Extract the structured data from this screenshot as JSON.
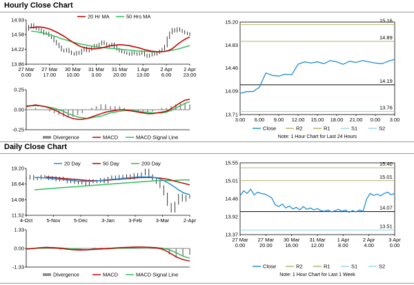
{
  "sections": [
    {
      "title": "Hourly Close Chart"
    },
    {
      "title": "Daily Close Chart"
    }
  ],
  "colors": {
    "close": "#1f8dd6",
    "red": "#c00000",
    "green": "#2dbf5a",
    "olive": "#b5b26a",
    "gray": "#8c8c8c",
    "lightblue": "#9ad9e6",
    "black": "#000000"
  },
  "chart_data": [
    {
      "id": "hourly_price",
      "type": "line",
      "legend": [
        "20 Hr MA",
        "50 Hrs MA"
      ],
      "yticks": [
        "14.93",
        "14.58",
        "14.22",
        "13.86"
      ],
      "ylim": [
        13.86,
        14.93
      ],
      "xticks": [
        [
          "27 Mar",
          "0.00"
        ],
        [
          "27 Mar",
          "17.00"
        ],
        [
          "30 Mar",
          "10.00"
        ],
        [
          "31 Mar",
          "3.00"
        ],
        [
          "31 Mar",
          "20.00"
        ],
        [
          "1 Apr",
          "13.00"
        ],
        [
          "2 Apr",
          "6.00"
        ],
        [
          "2 Apr",
          "23.00"
        ]
      ],
      "close": [
        14.7,
        14.78,
        14.82,
        14.75,
        14.72,
        14.7,
        14.66,
        14.6,
        14.62,
        14.55,
        14.5,
        14.42,
        14.35,
        14.28,
        14.2,
        14.18,
        14.22,
        14.16,
        14.12,
        14.1,
        14.15,
        14.12,
        14.2,
        14.25,
        14.18,
        14.22,
        14.28,
        14.32,
        14.3,
        14.35,
        14.4,
        14.36,
        14.3,
        14.32,
        14.35,
        14.28,
        14.22,
        14.18,
        14.16,
        14.14,
        14.12,
        14.1,
        14.14,
        14.12,
        14.1,
        14.12,
        14.16,
        14.08,
        14.05,
        14.08,
        14.12,
        14.1,
        14.14,
        14.18,
        14.22,
        14.3,
        14.5,
        14.62,
        14.7,
        14.66,
        14.72,
        14.68,
        14.65,
        14.62,
        14.6,
        14.58
      ],
      "ma20": [
        14.74,
        14.75,
        14.76,
        14.76,
        14.75,
        14.73,
        14.7,
        14.66,
        14.62,
        14.57,
        14.52,
        14.46,
        14.4,
        14.35,
        14.3,
        14.27,
        14.25,
        14.24,
        14.23,
        14.24,
        14.25,
        14.27,
        14.29,
        14.31,
        14.32,
        14.33,
        14.33,
        14.32,
        14.31,
        14.29,
        14.27,
        14.25,
        14.22,
        14.2,
        14.18,
        14.17,
        14.16,
        14.16,
        14.17,
        14.19,
        14.23,
        14.3,
        14.37,
        14.43,
        14.48,
        14.52
      ],
      "ma50": [
        14.66,
        14.65,
        14.63,
        14.61,
        14.58,
        14.55,
        14.52,
        14.48,
        14.45,
        14.42,
        14.39,
        14.36,
        14.34,
        14.32,
        14.3,
        14.28,
        14.27,
        14.26,
        14.25,
        14.24,
        14.23,
        14.22,
        14.21,
        14.2,
        14.19,
        14.18,
        14.17,
        14.17,
        14.16,
        14.16,
        14.16,
        14.17,
        14.18,
        14.2,
        14.22,
        14.25,
        14.28,
        14.31
      ]
    },
    {
      "id": "hourly_macd",
      "type": "line",
      "legend": [
        "Divergence",
        "MACD",
        "MACD Signal Line"
      ],
      "yticks": [
        "0.25",
        "0.00",
        "-0.25"
      ],
      "ylim": [
        -0.25,
        0.25
      ],
      "macd": [
        0.04,
        0.05,
        0.06,
        0.05,
        0.04,
        0.02,
        0.0,
        -0.03,
        -0.06,
        -0.09,
        -0.11,
        -0.12,
        -0.12,
        -0.11,
        -0.09,
        -0.07,
        -0.05,
        -0.03,
        -0.02,
        -0.01,
        0.0,
        0.0,
        -0.01,
        -0.02,
        -0.03,
        -0.04,
        -0.05,
        -0.05,
        -0.04,
        -0.03,
        -0.02,
        0.01,
        0.05,
        0.09,
        0.12,
        0.13
      ],
      "signal": [
        0.05,
        0.05,
        0.05,
        0.05,
        0.04,
        0.03,
        0.02,
        0.0,
        -0.02,
        -0.05,
        -0.07,
        -0.09,
        -0.1,
        -0.11,
        -0.1,
        -0.09,
        -0.08,
        -0.06,
        -0.04,
        -0.03,
        -0.02,
        -0.01,
        -0.01,
        -0.01,
        -0.02,
        -0.03,
        -0.03,
        -0.04,
        -0.04,
        -0.04,
        -0.03,
        -0.01,
        0.02,
        0.05,
        0.08,
        0.1
      ]
    },
    {
      "id": "hourly_24h",
      "type": "line",
      "yticks": [
        "15.20",
        "14.83",
        "14.46",
        "14.09",
        "13.71"
      ],
      "ylim": [
        13.71,
        15.2
      ],
      "xticks": [
        "3.00",
        "6.00",
        "9.00",
        "12.00",
        "15.00",
        "18.00",
        "21.00",
        "0.00",
        "3.00"
      ],
      "levels": {
        "R2": 15.16,
        "R1": 14.89,
        "S1": 14.19,
        "S2": 13.76
      },
      "level_labels": {
        "R2": "15.16",
        "R1": "14.89",
        "S1": "14.19",
        "S2": "13.76"
      },
      "close": [
        14.05,
        14.08,
        14.08,
        14.15,
        14.38,
        14.34,
        14.33,
        14.36,
        14.35,
        14.52,
        14.56,
        14.54,
        14.56,
        14.53,
        14.58,
        14.56,
        14.52,
        14.57,
        14.55,
        14.58,
        14.56,
        14.54,
        14.53,
        14.57,
        14.6
      ],
      "legend": [
        "Close",
        "R2",
        "R1",
        "S1",
        "S2"
      ],
      "note": "Note: 1 Hour Chart for Last 24 Hours"
    },
    {
      "id": "daily_price",
      "type": "line",
      "legend": [
        "20 Day",
        "50 Day",
        "200 Day"
      ],
      "yticks": [
        "19.20",
        "16.64",
        "14.08",
        "11.52"
      ],
      "ylim": [
        11.52,
        19.2
      ],
      "xticks": [
        "4-Oct",
        "5-Nov",
        "5-Dec",
        "3-Jan",
        "3-Feb",
        "3-Mar",
        "2-Apr"
      ],
      "close": [
        17.6,
        17.9,
        17.5,
        17.6,
        17.9,
        17.8,
        17.5,
        17.7,
        17.3,
        17.6,
        17.4,
        17.0,
        17.2,
        16.9,
        16.8,
        17.0,
        16.6,
        17.2,
        17.0,
        17.1,
        17.4,
        17.0,
        17.6,
        17.8,
        17.5,
        17.9,
        17.7,
        18.0,
        17.6,
        18.2,
        17.8,
        18.3,
        18.9,
        18.0,
        17.5,
        16.9,
        16.2,
        15.0,
        13.3,
        12.2,
        13.5,
        14.8,
        14.0,
        14.6,
        14.5
      ],
      "ma20": [
        17.7,
        17.7,
        17.6,
        17.5,
        17.4,
        17.3,
        17.2,
        17.1,
        17.1,
        17.1,
        17.2,
        17.3,
        17.4,
        17.5,
        17.6,
        17.7,
        17.8,
        17.8,
        17.8,
        17.6,
        17.2,
        16.6,
        15.9,
        15.2,
        14.9
      ],
      "ma50": [
        17.8,
        17.7,
        17.6,
        17.5,
        17.4,
        17.3,
        17.2,
        17.2,
        17.2,
        17.3,
        17.4,
        17.5,
        17.6,
        17.7,
        17.7,
        17.7,
        17.6,
        17.4,
        17.1,
        16.8,
        16.5
      ],
      "ma200": [
        15.7,
        15.8,
        15.9,
        16.0,
        16.1,
        16.2,
        16.3,
        16.4,
        16.5,
        16.6,
        16.7,
        16.8,
        16.9,
        17.0,
        17.1,
        17.2,
        17.2,
        17.2,
        17.3,
        17.3
      ]
    },
    {
      "id": "daily_macd",
      "type": "line",
      "legend": [
        "Divergence",
        "MACD",
        "MACD Signal Line"
      ],
      "yticks": [
        "1.33",
        "0.00",
        "-1.33"
      ],
      "ylim": [
        -1.33,
        1.33
      ],
      "macd": [
        -0.05,
        0.0,
        0.05,
        0.08,
        0.05,
        0.0,
        -0.05,
        -0.1,
        -0.12,
        -0.1,
        -0.05,
        -0.02,
        0.0,
        0.03,
        0.06,
        0.08,
        0.1,
        0.1,
        0.08,
        0.05,
        -0.05,
        -0.3,
        -0.6,
        -0.8,
        -0.9
      ],
      "signal": [
        -0.02,
        0.0,
        0.02,
        0.05,
        0.06,
        0.04,
        0.0,
        -0.04,
        -0.08,
        -0.1,
        -0.08,
        -0.05,
        -0.03,
        0.0,
        0.03,
        0.05,
        0.07,
        0.08,
        0.08,
        0.06,
        0.02,
        -0.1,
        -0.3,
        -0.55,
        -0.7
      ]
    },
    {
      "id": "daily_week",
      "type": "line",
      "yticks": [
        "15.55",
        "15.01",
        "14.46",
        "13.92",
        "13.37"
      ],
      "ylim": [
        13.37,
        15.55
      ],
      "xticks": [
        [
          "27 Mar",
          "0.00"
        ],
        [
          "27 Mar",
          "20.00"
        ],
        [
          "30 Mar",
          "16.00"
        ],
        [
          "31 Mar",
          "12.00"
        ],
        [
          "1 Apr",
          "8.00"
        ],
        [
          "2 Apr",
          "4.00"
        ],
        [
          "3 Apr",
          "0.00"
        ]
      ],
      "levels": {
        "R2": 15.4,
        "R1": 15.01,
        "S1": 14.07,
        "S2": 13.51
      },
      "level_labels": {
        "R2": "15.40",
        "R1": "15.01",
        "S1": "14.07",
        "S2": "13.51"
      },
      "close": [
        14.55,
        14.7,
        14.62,
        14.75,
        14.58,
        14.66,
        14.62,
        14.6,
        14.55,
        14.48,
        14.28,
        14.22,
        14.3,
        14.18,
        14.24,
        14.15,
        14.2,
        14.12,
        14.22,
        14.14,
        14.18,
        14.12,
        14.16,
        14.1,
        14.08,
        14.12,
        14.06,
        14.1,
        14.14,
        14.08,
        14.12,
        14.05,
        14.1,
        14.06,
        14.12,
        14.08,
        14.45,
        14.62,
        14.56,
        14.6,
        14.55,
        14.62,
        14.66,
        14.58,
        14.62
      ],
      "legend": [
        "Close",
        "R2",
        "R1",
        "S1",
        "S2"
      ],
      "note": "Note: 1 Hour Chart for Last 1 Week"
    }
  ]
}
